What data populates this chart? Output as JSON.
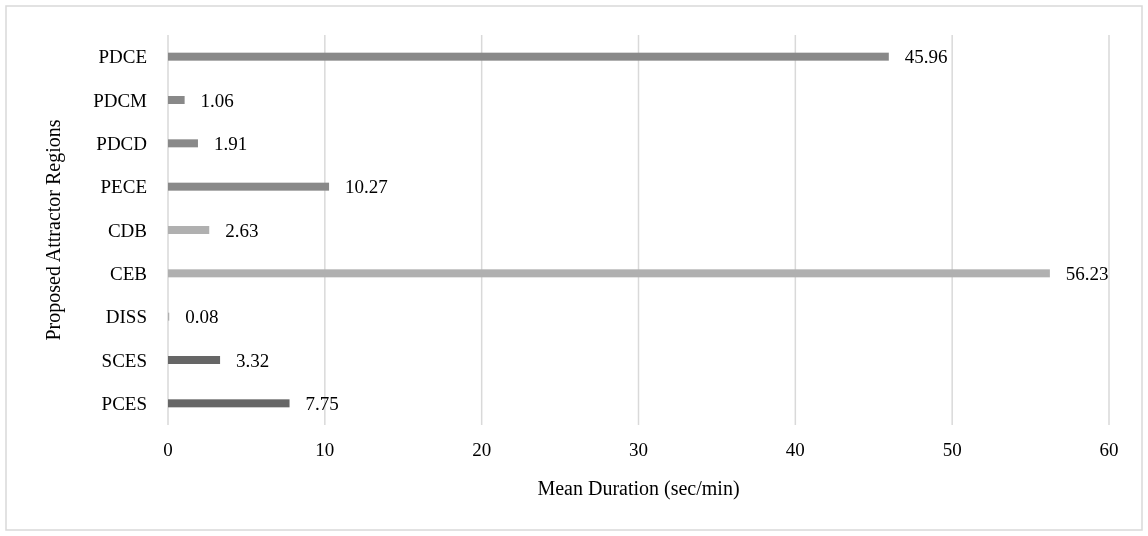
{
  "chart_data": {
    "type": "bar",
    "orientation": "horizontal",
    "xlabel": "Mean Duration (sec/min)",
    "ylabel": "Proposed Attractor Regions",
    "categories": [
      "PDCE",
      "PDCM",
      "PDCD",
      "PECE",
      "CDB",
      "CEB",
      "DISS",
      "SCES",
      "PCES"
    ],
    "values": [
      45.96,
      1.06,
      1.91,
      10.27,
      2.63,
      56.23,
      0.08,
      3.32,
      7.75
    ],
    "colors": [
      "#898989",
      "#898989",
      "#898989",
      "#898989",
      "#b0b0b0",
      "#b0b0b0",
      "#b0b0b0",
      "#666666",
      "#666666"
    ],
    "xlim": [
      0,
      60
    ],
    "xticks": [
      0,
      10,
      20,
      30,
      40,
      50,
      60
    ],
    "grid": "x",
    "data_labels": true
  }
}
